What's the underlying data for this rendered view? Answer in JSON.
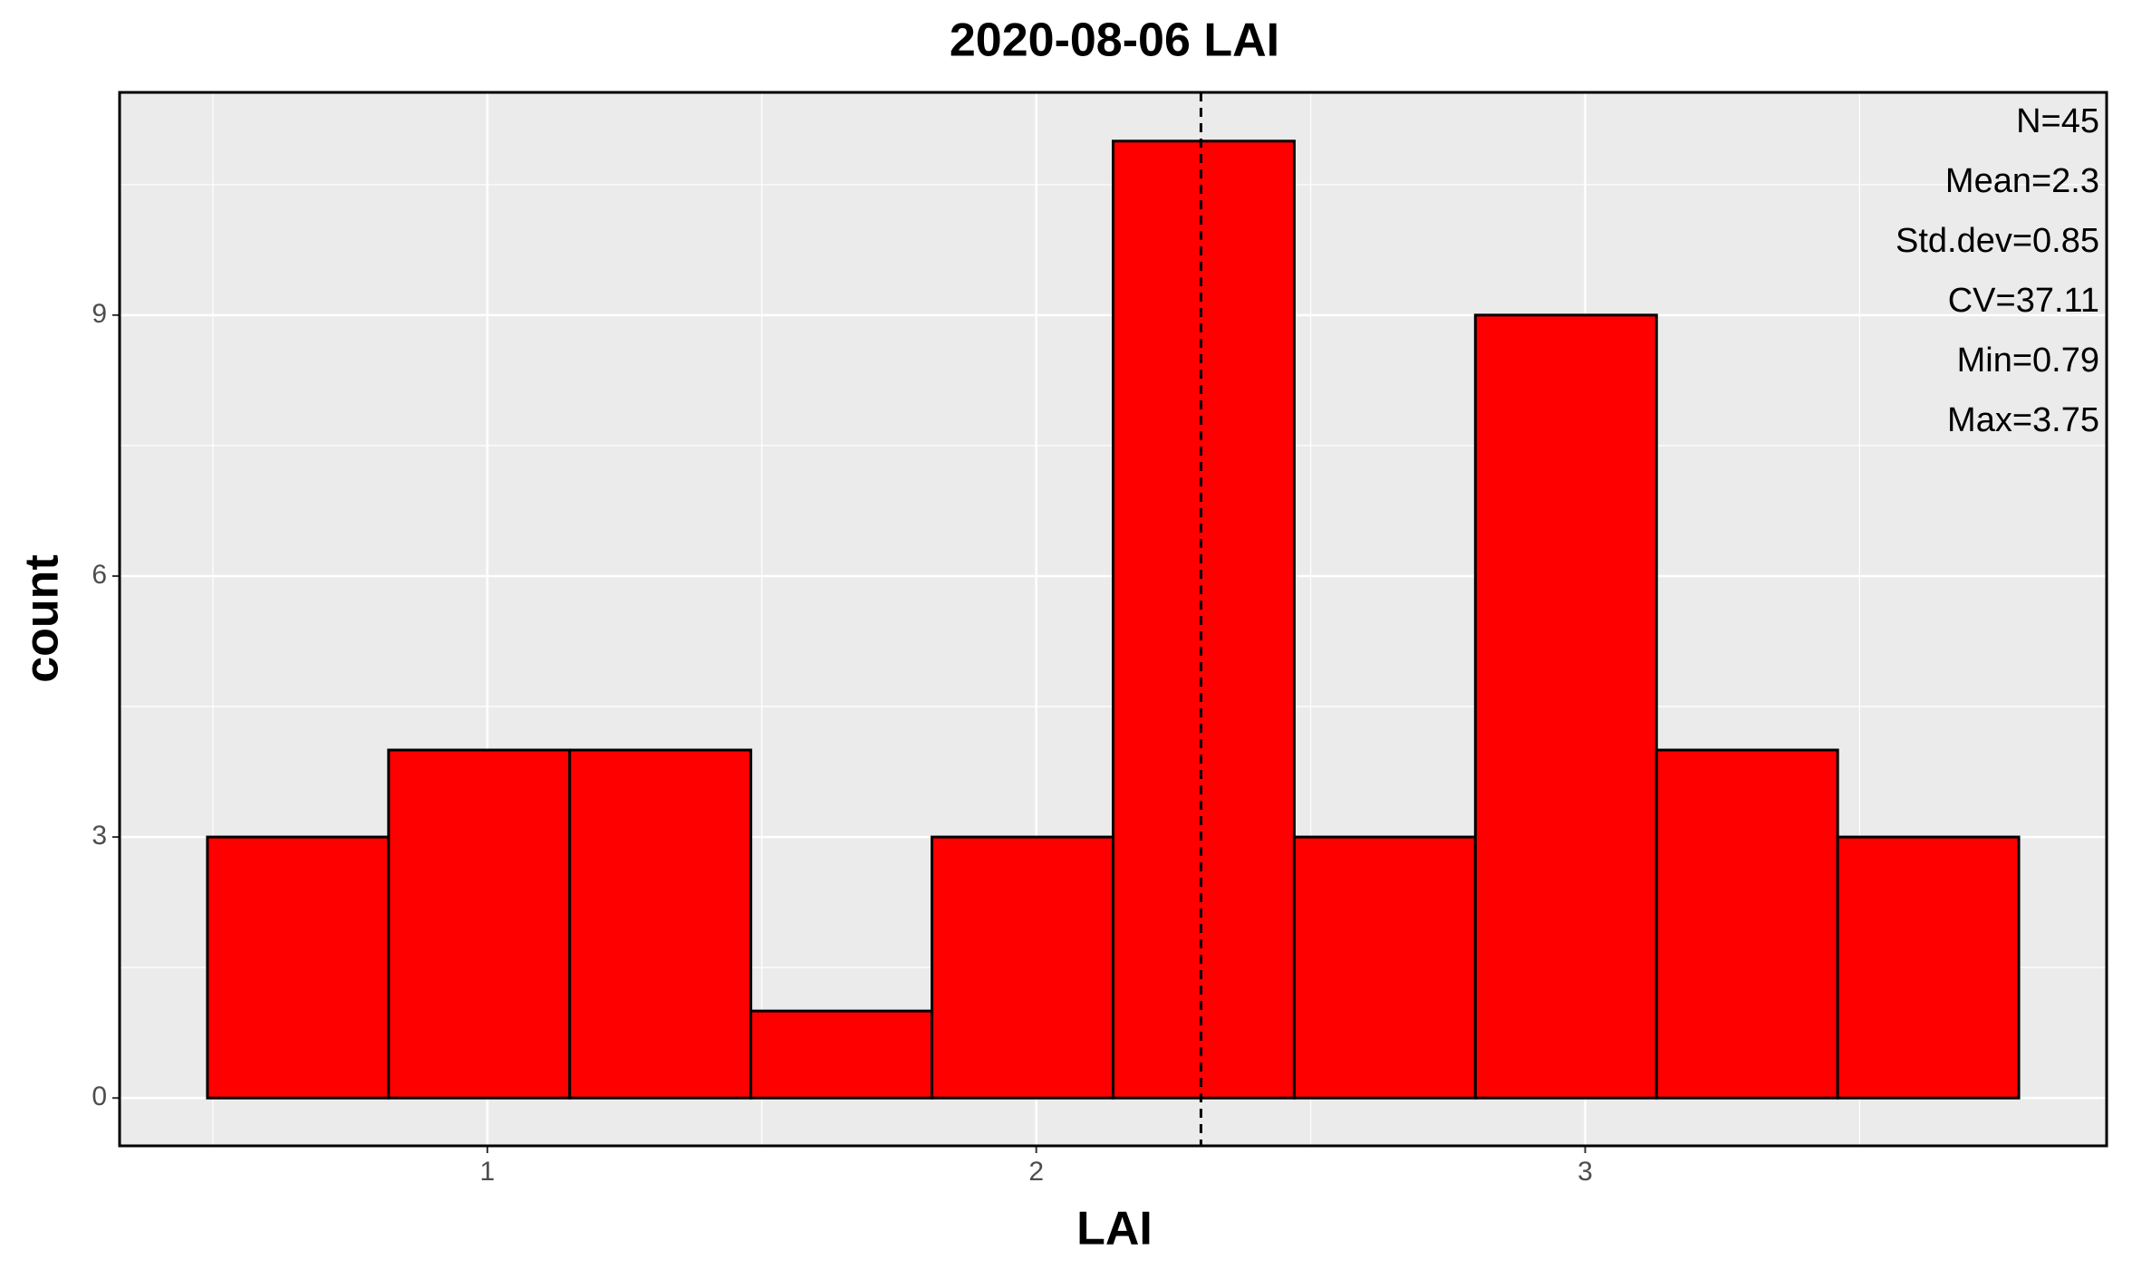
{
  "chart_data": {
    "type": "histogram",
    "title": "2020-08-06 LAI",
    "x_label": "LAI",
    "y_label": "count",
    "bins": [
      0.49,
      0.82,
      1.15,
      1.48,
      1.81,
      2.14,
      2.47,
      2.8,
      3.13,
      3.46,
      3.79
    ],
    "values": [
      3,
      4,
      4,
      1,
      3,
      11,
      3,
      9,
      4,
      3
    ],
    "color": "#ff0000",
    "edge_color": "#000000",
    "xlim": [
      0.33,
      3.95
    ],
    "ylim": [
      -0.55,
      11.56
    ],
    "xticks": [
      1,
      2,
      3
    ],
    "yticks": [
      0,
      3,
      6,
      9
    ],
    "grid": true,
    "mean_line": 2.3,
    "annotations": [
      "N=45",
      "Mean=2.3",
      "Std.dev=0.85",
      "CV=37.11",
      "Min=0.79",
      "Max=3.75"
    ]
  }
}
